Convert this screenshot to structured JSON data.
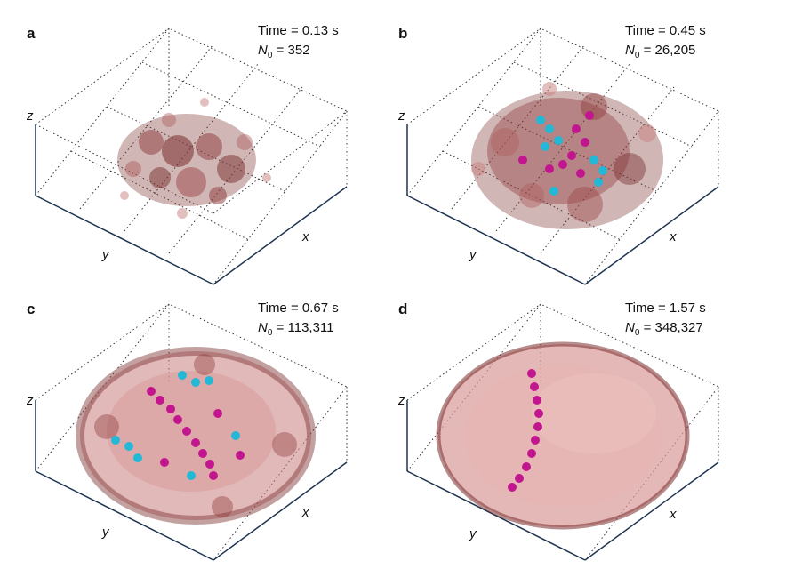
{
  "panels": [
    {
      "label": "a",
      "time": "Time = 0.13 s",
      "n0_symbol": "N",
      "n0_sub": "0",
      "n0_value": "= 352",
      "axes": {
        "x": "x",
        "y": "y",
        "z": "z"
      }
    },
    {
      "label": "b",
      "time": "Time = 0.45 s",
      "n0_symbol": "N",
      "n0_sub": "0",
      "n0_value": "= 26,205",
      "axes": {
        "x": "x",
        "y": "y",
        "z": "z"
      }
    },
    {
      "label": "c",
      "time": "Time = 0.67 s",
      "n0_symbol": "N",
      "n0_sub": "0",
      "n0_value": "= 113,311",
      "axes": {
        "x": "x",
        "y": "y",
        "z": "z"
      }
    },
    {
      "label": "d",
      "time": "Time = 1.57 s",
      "n0_symbol": "N",
      "n0_sub": "0",
      "n0_value": "= 348,327",
      "axes": {
        "x": "x",
        "y": "y",
        "z": "z"
      }
    }
  ],
  "colors": {
    "cloud_dark": "#7a2e2e",
    "cloud_light": "#d99a98",
    "cyan": "#22b8d6",
    "magenta": "#c2168f",
    "axis": "#1f3550"
  }
}
